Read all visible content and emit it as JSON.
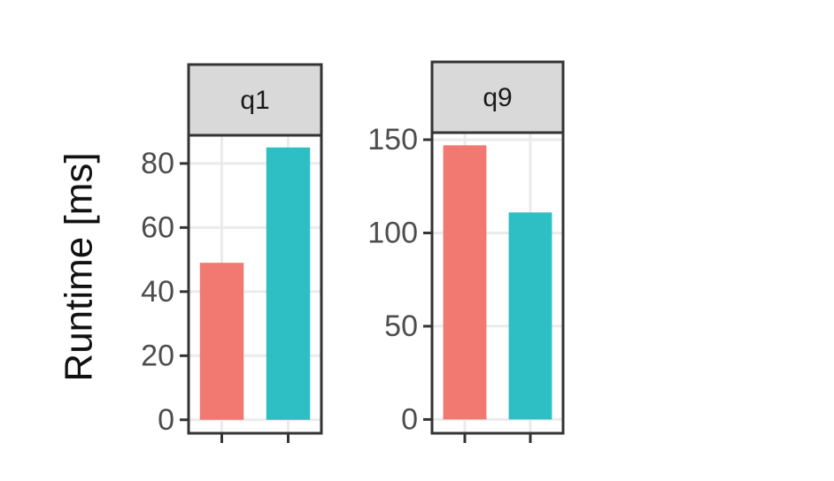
{
  "chart_data": [
    {
      "type": "bar",
      "title": "q1",
      "y_label": "Runtime [ms]",
      "categories": [
        null,
        null
      ],
      "values": [
        49,
        85
      ],
      "colors": [
        "#f27872",
        "#2ebfc4"
      ],
      "ylim": [
        -4.2,
        88.8
      ],
      "yticks": [
        0,
        20,
        40,
        60,
        80
      ],
      "grid": true
    },
    {
      "type": "bar",
      "title": "q9",
      "categories": [
        null,
        null
      ],
      "values": [
        147,
        111
      ],
      "colors": [
        "#f27872",
        "#2ebfc4"
      ],
      "ylim": [
        -7.4,
        153.8
      ],
      "yticks": [
        0,
        50,
        100,
        150
      ],
      "grid": true
    }
  ]
}
